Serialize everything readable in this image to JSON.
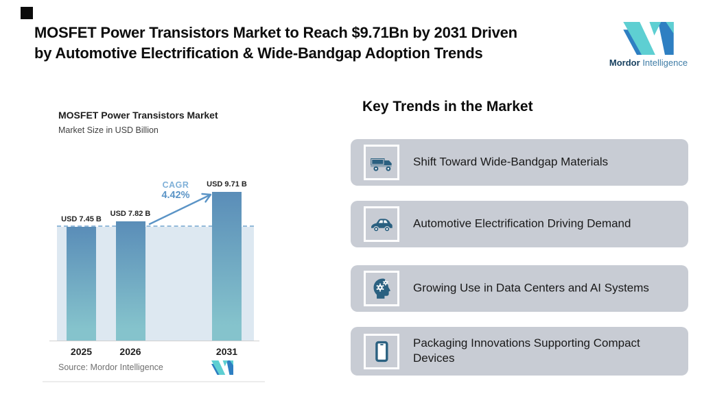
{
  "colors": {
    "accent_teal": "#5ecfd2",
    "accent_blue": "#2e7fc2",
    "icon_blue": "#2a6080",
    "card_gray": "#c8ccd4",
    "bar_top": "#5a8db8",
    "bar_bottom": "#85c3cc",
    "plot_fill": "#dde8f1",
    "dashed_line": "#93b9d9",
    "cagr_value_blue": "#5b94c6",
    "cagr_label_blue": "#7fb0d8"
  },
  "header": {
    "title_lines": [
      "MOSFET Power Transistors Market to Reach $9.71Bn by 2031 Driven",
      "by Automotive Electrification & Wide-Bandgap Adoption Trends"
    ],
    "logo": {
      "brand_bold": "Mordor",
      "brand_rest": "Intelligence"
    }
  },
  "chart": {
    "title": "MOSFET Power Transistors Market",
    "subtitle": "Market Size in USD Billion",
    "cagr_label": "CAGR",
    "cagr_value": "4.42%",
    "source": "Source: Mordor Intelligence"
  },
  "chart_data": {
    "type": "bar",
    "title": "MOSFET Power Transistors Market",
    "ylabel": "Market Size in USD Billion",
    "categories": [
      "2025",
      "2026",
      "2031"
    ],
    "values": [
      7.45,
      7.82,
      9.71
    ],
    "bar_labels": [
      "USD 7.45 B",
      "USD 7.82 B",
      "USD 9.71 B"
    ],
    "annotations": [
      {
        "text": "CAGR 4.42%",
        "target": "2031"
      }
    ],
    "reference_line": 7.45,
    "ylim": [
      0,
      10.5
    ],
    "grid": false,
    "legend": "none"
  },
  "trends": {
    "heading": "Key Trends in the Market",
    "items": [
      {
        "icon": "truck-icon",
        "label": "Shift Toward Wide-Bandgap Materials"
      },
      {
        "icon": "car-icon",
        "label": "Automotive Electrification Driving Demand"
      },
      {
        "icon": "ai-head-icon",
        "label": "Growing Use in Data Centers and AI Systems"
      },
      {
        "icon": "smartphone-icon",
        "label": "Packaging Innovations Supporting Compact Devices"
      }
    ]
  }
}
